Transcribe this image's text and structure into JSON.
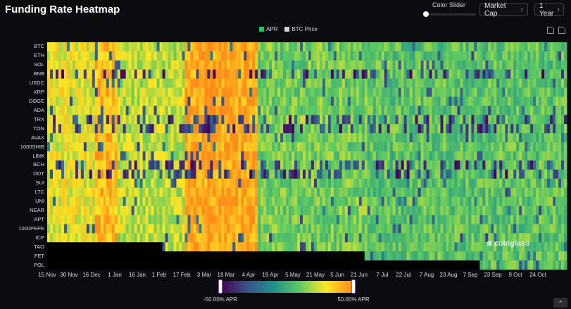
{
  "title": "Funding Rate Heatmap",
  "controls": {
    "slider_label": "Color Slider",
    "sort_select": "Market Cap",
    "range_select": "1 Year"
  },
  "legend": [
    {
      "label": "APR",
      "color": "#22c55e"
    },
    {
      "label": "BTC Price",
      "color": "#cfd2d8"
    }
  ],
  "watermark": "coinglass",
  "colorbar": {
    "min_label": "-50.00% APR",
    "max_label": "50.00% APR",
    "colors": [
      "#440154",
      "#3b528b",
      "#21918c",
      "#5ec962",
      "#fde725",
      "#ff8c1a"
    ]
  },
  "chart_data": {
    "type": "heatmap",
    "rows": [
      "BTC",
      "ETH",
      "SOL",
      "BNB",
      "USDC",
      "XRP",
      "DOGE",
      "ADA",
      "TRX",
      "TON",
      "AVAX",
      "1000SHIB",
      "LINK",
      "BCH",
      "DOT",
      "SUI",
      "LTC",
      "UNI",
      "NEAR",
      "APT",
      "1000PEPE",
      "ICP",
      "TAO",
      "FET",
      "POL"
    ],
    "x_ticks": [
      "15 Nov",
      "30 Nov",
      "16 Dec",
      "1 Jan",
      "16 Jan",
      "1 Feb",
      "17 Feb",
      "3 Mar",
      "19 Mar",
      "4 Apr",
      "19 Apr",
      "5 May",
      "21 May",
      "5 Jun",
      "21 Jun",
      "7 Jul",
      "22 Jul",
      "7 Aug",
      "23 Aug",
      "7 Sep",
      "23 Sep",
      "9 Oct",
      "24 Oct"
    ],
    "x_range": [
      "15 Nov",
      "6 Nov"
    ],
    "color_scale": {
      "min": -50,
      "max": 50,
      "unit": "% APR"
    },
    "period_levels": [
      {
        "from": "15 Nov",
        "to": "15 Dec",
        "level": 28
      },
      {
        "from": "16 Dec",
        "to": "31 Dec",
        "level": 40
      },
      {
        "from": "1 Jan",
        "to": "16 Feb",
        "level": 22
      },
      {
        "from": "17 Feb",
        "to": "5 Apr",
        "level": 45
      },
      {
        "from": "6 Apr",
        "to": "20 Jun",
        "level": 12
      },
      {
        "from": "21 Jun",
        "to": "6 Nov",
        "level": 8
      }
    ],
    "missing_data": [
      {
        "row": "TAO",
        "from": "15 Nov",
        "to": "1 Feb"
      },
      {
        "row": "FET",
        "from": "15 Nov",
        "to": "20 Jun"
      },
      {
        "row": "POL",
        "from": "15 Nov",
        "to": "7 Sep"
      }
    ],
    "negative_rows": [
      "BNB",
      "TRX",
      "TON",
      "BCH",
      "DOT"
    ]
  }
}
